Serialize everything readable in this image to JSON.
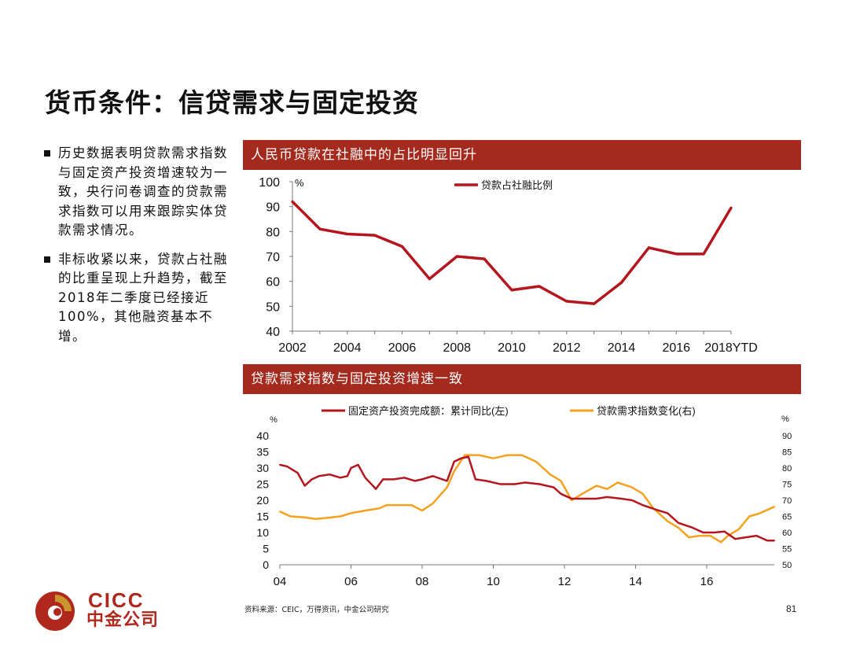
{
  "title": "货币条件：信贷需求与固定投资",
  "bullets": [
    "历史数据表明贷款需求指数与固定资产投资增速较为一致，央行问卷调查的贷款需求指数可以用来跟踪实体贷款需求情况。",
    "非标收紧以来，贷款占社融的比重呈现上升趋势，截至2018年二季度已经接近100%，其他融资基本不增。"
  ],
  "panel1_title": "人民币贷款在社融中的占比明显回升",
  "panel2_title": "贷款需求指数与固定投资增速一致",
  "source": "资料来源：CEIC，万得资讯，中金公司研究",
  "page_number": "81",
  "logo": {
    "latin": "CICC",
    "cn": "中金公司"
  },
  "colors": {
    "header_bg": "#a52a1e",
    "series_red": "#b5161d",
    "series_orange": "#f4a21d",
    "logo_red": "#b0281c",
    "logo_gold": "#c9952c"
  },
  "chart_data": [
    {
      "type": "line",
      "unit_label": "%",
      "series": [
        {
          "name": "贷款占社融比例",
          "x": [
            "2002",
            "2003",
            "2004",
            "2005",
            "2006",
            "2007",
            "2008",
            "2009",
            "2010",
            "2011",
            "2012",
            "2013",
            "2014",
            "2015",
            "2016",
            "2017",
            "2018YTD"
          ],
          "values": [
            92,
            81,
            79,
            78.5,
            74,
            61,
            70,
            69,
            56.5,
            58,
            52,
            51,
            59.5,
            73.5,
            71,
            71,
            89.5
          ]
        }
      ],
      "x_tick_labels": [
        "2002",
        "2004",
        "2006",
        "2008",
        "2010",
        "2012",
        "2014",
        "2016",
        "2018YTD"
      ],
      "ylim": [
        40,
        100
      ],
      "y_ticks": [
        40,
        50,
        60,
        70,
        80,
        90,
        100
      ],
      "legend": "top"
    },
    {
      "type": "line",
      "left_unit_label": "%",
      "right_unit_label": "%",
      "x_tick_labels": [
        "04",
        "06",
        "08",
        "10",
        "12",
        "14",
        "16"
      ],
      "xlim": [
        2004,
        2017.9
      ],
      "ylim_left": [
        0,
        40
      ],
      "ylim_right": [
        50,
        90
      ],
      "y_ticks_left": [
        0,
        5,
        10,
        15,
        20,
        25,
        30,
        35,
        40
      ],
      "y_ticks_right": [
        50,
        55,
        60,
        65,
        70,
        75,
        80,
        85,
        90
      ],
      "series": [
        {
          "name": "固定资产投资完成额：累计同比(左)",
          "axis": "left",
          "x": [
            2004.0,
            2004.2,
            2004.5,
            2004.7,
            2004.9,
            2005.1,
            2005.4,
            2005.7,
            2005.9,
            2006.0,
            2006.2,
            2006.4,
            2006.7,
            2006.9,
            2007.2,
            2007.5,
            2007.8,
            2008.0,
            2008.3,
            2008.7,
            2008.9,
            2009.1,
            2009.3,
            2009.5,
            2009.8,
            2010.2,
            2010.6,
            2010.9,
            2011.3,
            2011.7,
            2011.9,
            2012.2,
            2012.5,
            2012.9,
            2013.2,
            2013.6,
            2013.9,
            2014.2,
            2014.6,
            2014.9,
            2015.2,
            2015.6,
            2015.9,
            2016.2,
            2016.5,
            2016.8,
            2017.1,
            2017.4,
            2017.7,
            2017.9
          ],
          "values": [
            31,
            30.5,
            28.5,
            24.5,
            26.5,
            27.5,
            28,
            27,
            27.5,
            30,
            31,
            27,
            23.5,
            26.5,
            26.5,
            27,
            26,
            26.5,
            27.5,
            26,
            32,
            33,
            33.5,
            26.5,
            26,
            25,
            25,
            25.5,
            25,
            24,
            22,
            20.5,
            20.5,
            20.5,
            21,
            20.5,
            20,
            18.5,
            17,
            16,
            13,
            11.5,
            10,
            10,
            10.3,
            8,
            8.5,
            9,
            7.5,
            7.5
          ]
        },
        {
          "name": "贷款需求指数变化(右)",
          "axis": "right",
          "x": [
            2004.0,
            2004.3,
            2004.7,
            2005.0,
            2005.3,
            2005.7,
            2006.0,
            2006.4,
            2006.8,
            2007.0,
            2007.3,
            2007.7,
            2008.0,
            2008.3,
            2008.7,
            2008.9,
            2009.2,
            2009.6,
            2010.0,
            2010.4,
            2010.8,
            2011.2,
            2011.6,
            2011.9,
            2012.2,
            2012.5,
            2012.9,
            2013.2,
            2013.5,
            2013.9,
            2014.2,
            2014.5,
            2014.9,
            2015.2,
            2015.5,
            2015.8,
            2016.1,
            2016.4,
            2016.6,
            2016.9,
            2017.2,
            2017.5,
            2017.9
          ],
          "values": [
            66.5,
            65,
            64.7,
            64.2,
            64.5,
            65,
            66,
            66.8,
            67.5,
            68.5,
            68.5,
            68.5,
            66.8,
            69,
            74,
            79,
            84,
            84,
            83,
            84,
            84,
            82,
            78,
            76,
            70,
            72,
            74.5,
            73.5,
            75.5,
            74,
            72,
            67.5,
            63.5,
            61.5,
            58.5,
            59,
            59,
            57,
            59,
            61,
            65,
            66,
            68
          ]
        }
      ],
      "legend": "top"
    }
  ]
}
